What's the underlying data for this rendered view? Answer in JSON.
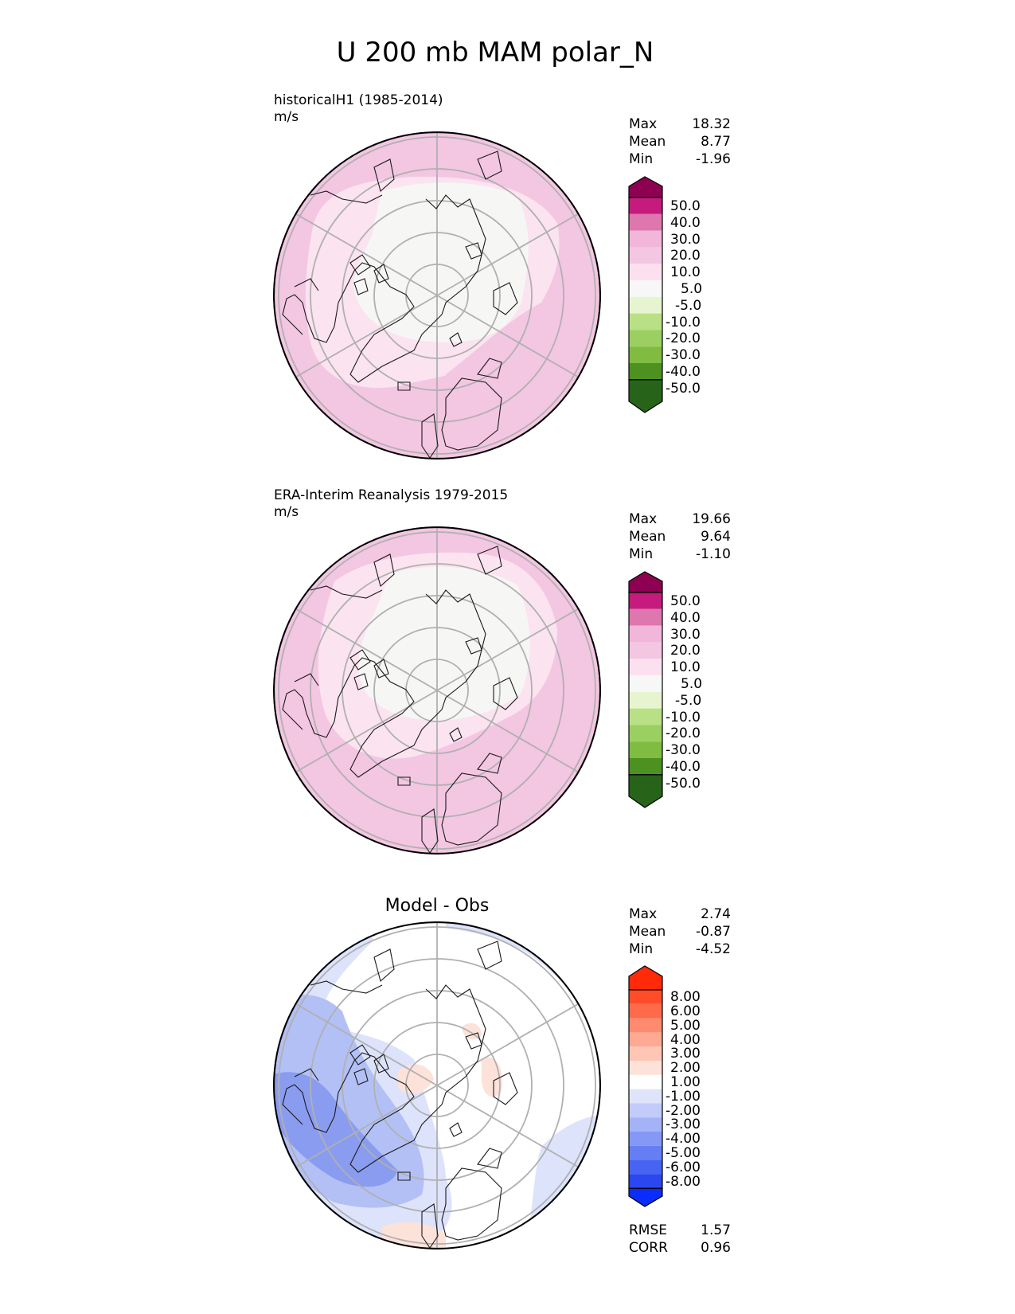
{
  "title": "U 200 mb MAM polar_N",
  "chart_data": [
    {
      "type": "heatmap",
      "projection": "north-polar-stereographic",
      "title": "historicalH1 (1985-2014)",
      "units": "m/s",
      "stats": [
        {
          "label": "Max",
          "value": "18.32"
        },
        {
          "label": "Mean",
          "value": "8.77"
        },
        {
          "label": "Min",
          "value": "-1.96"
        }
      ],
      "colorbar": {
        "extend": "both",
        "ticks": [
          "50.0",
          "40.0",
          "30.0",
          "20.0",
          "10.0",
          "5.0",
          "-5.0",
          "-10.0",
          "-20.0",
          "-30.0",
          "-40.0",
          "-50.0"
        ],
        "colors": [
          "#8e0152",
          "#c51b7d",
          "#de77ae",
          "#f1b6da",
          "#f3c6e2",
          "#fde0ef",
          "#f7f7f7",
          "#e6f5d0",
          "#b8e186",
          "#9ccf62",
          "#7fbc41",
          "#4d9221",
          "#276419"
        ]
      },
      "field_fill_colors": {
        "strong": "#f3c6e2",
        "weak": "#fbe3f0",
        "calm": "#f6f6f4"
      }
    },
    {
      "type": "heatmap",
      "projection": "north-polar-stereographic",
      "title": "ERA-Interim Reanalysis 1979-2015",
      "units": "m/s",
      "stats": [
        {
          "label": "Max",
          "value": "19.66"
        },
        {
          "label": "Mean",
          "value": "9.64"
        },
        {
          "label": "Min",
          "value": "-1.10"
        }
      ],
      "colorbar": {
        "extend": "both",
        "ticks": [
          "50.0",
          "40.0",
          "30.0",
          "20.0",
          "10.0",
          "5.0",
          "-5.0",
          "-10.0",
          "-20.0",
          "-30.0",
          "-40.0",
          "-50.0"
        ],
        "colors": [
          "#8e0152",
          "#c51b7d",
          "#de77ae",
          "#f1b6da",
          "#f3c6e2",
          "#fde0ef",
          "#f7f7f7",
          "#e6f5d0",
          "#b8e186",
          "#9ccf62",
          "#7fbc41",
          "#4d9221",
          "#276419"
        ]
      },
      "field_fill_colors": {
        "strong": "#f3c6e2",
        "weak": "#fbe3f0",
        "calm": "#f6f6f4"
      }
    },
    {
      "type": "heatmap",
      "projection": "north-polar-stereographic",
      "title": "Model - Obs",
      "units": "",
      "stats": [
        {
          "label": "Max",
          "value": "2.74"
        },
        {
          "label": "Mean",
          "value": "-0.87"
        },
        {
          "label": "Min",
          "value": "-4.52"
        }
      ],
      "colorbar": {
        "extend": "both",
        "ticks": [
          "8.00",
          "6.00",
          "5.00",
          "4.00",
          "3.00",
          "2.00",
          "1.00",
          "-1.00",
          "-2.00",
          "-3.00",
          "-4.00",
          "-5.00",
          "-6.00",
          "-8.00"
        ],
        "colors": [
          "#ff2a0a",
          "#ff4d2a",
          "#ff6a4a",
          "#ff8a6e",
          "#ffa892",
          "#ffc6b6",
          "#fde2da",
          "#ffffff",
          "#dfe4fb",
          "#c2cbfa",
          "#a4b3f8",
          "#8598f6",
          "#667ef4",
          "#4663f2",
          "#2a47f0",
          "#0a2cff"
        ]
      },
      "field_fill_colors": {
        "strong_neg": "#8a9cf0",
        "mid_neg": "#b3c0f5",
        "weak_neg": "#dde3fb",
        "neutral": "#ffffff",
        "weak_pos": "#fde2da"
      },
      "metrics": [
        {
          "label": "RMSE",
          "value": "1.57"
        },
        {
          "label": "CORR",
          "value": "0.96"
        }
      ]
    }
  ]
}
